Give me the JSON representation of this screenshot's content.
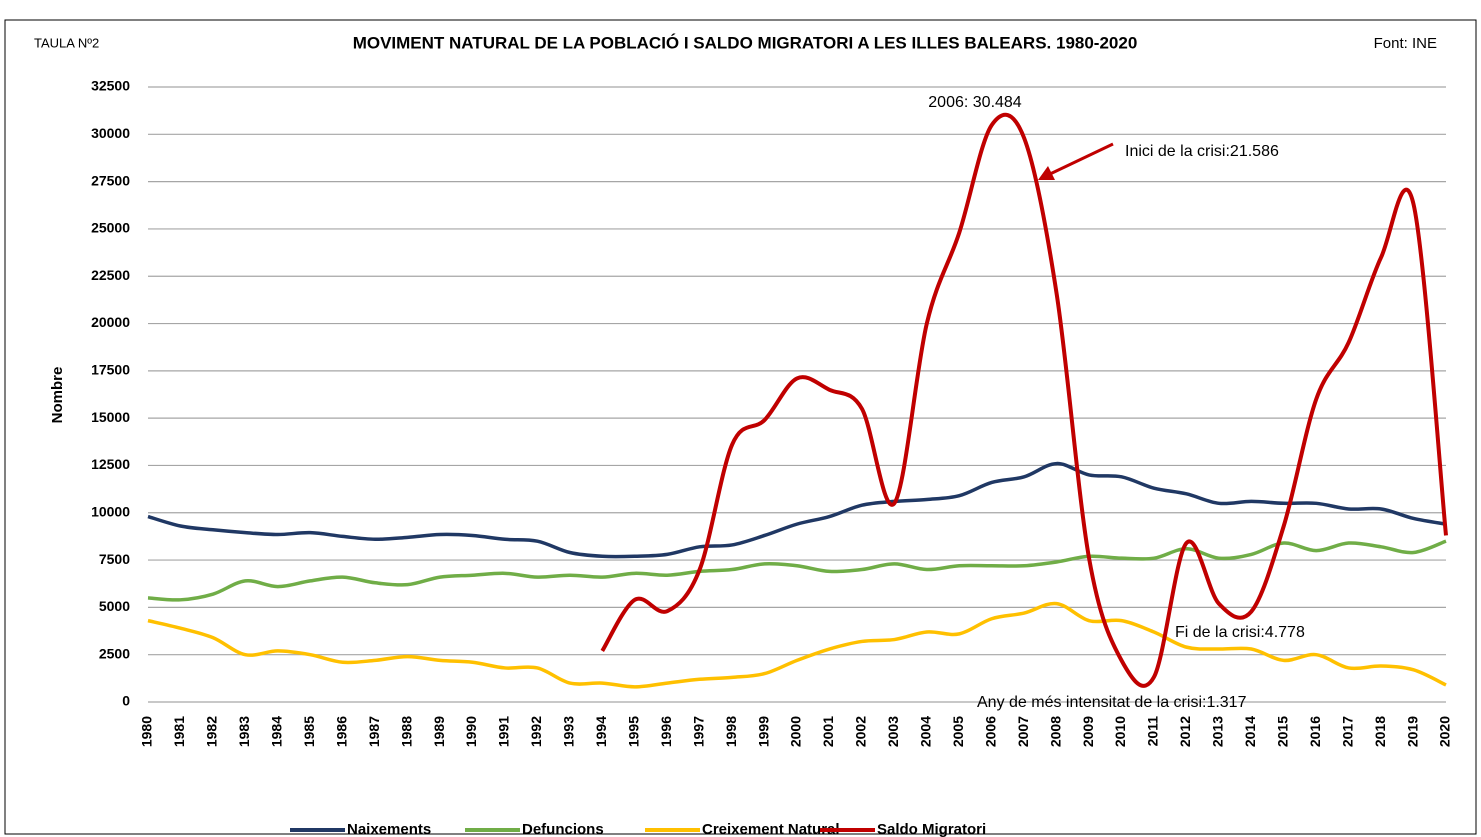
{
  "chart_data": {
    "type": "line",
    "title": "MOVIMENT NATURAL DE LA POBLACIÓ I SALDO MIGRATORI A LES ILLES BALEARS. 1980-2020",
    "table_label": "TAULA Nº2",
    "source": "Font: INE",
    "y_label": "Nombre",
    "categories": [
      "1980",
      "1981",
      "1982",
      "1983",
      "1984",
      "1985",
      "1986",
      "1987",
      "1988",
      "1989",
      "1990",
      "1991",
      "1992",
      "1993",
      "1994",
      "1995",
      "1996",
      "1997",
      "1998",
      "1999",
      "2000",
      "2001",
      "2002",
      "2003",
      "2004",
      "2005",
      "2006",
      "2007",
      "2008",
      "2009",
      "2010",
      "2011",
      "2012",
      "2013",
      "2014",
      "2015",
      "2016",
      "2017",
      "2018",
      "2019",
      "2020"
    ],
    "series": [
      {
        "name": "Naixements",
        "color": "#203864",
        "values": [
          9800,
          9300,
          9100,
          8950,
          8850,
          8950,
          8750,
          8600,
          8700,
          8850,
          8800,
          8600,
          8500,
          7900,
          7700,
          7700,
          7800,
          8200,
          8300,
          8800,
          9400,
          9800,
          10400,
          10600,
          10700,
          10900,
          11600,
          11900,
          12600,
          12000,
          11900,
          11300,
          11000,
          10500,
          10600,
          10500,
          10500,
          10200,
          10200,
          9700,
          9400
        ]
      },
      {
        "name": "Defuncions",
        "color": "#70ad47",
        "values": [
          5500,
          5400,
          5700,
          6400,
          6100,
          6400,
          6600,
          6300,
          6200,
          6600,
          6700,
          6800,
          6600,
          6700,
          6600,
          6800,
          6700,
          6900,
          7000,
          7300,
          7200,
          6900,
          7000,
          7300,
          7000,
          7200,
          7200,
          7200,
          7400,
          7700,
          7600,
          7600,
          8100,
          7600,
          7800,
          8400,
          8000,
          8400,
          8200,
          7900,
          8500
        ]
      },
      {
        "name": "Creixement Natural",
        "color": "#ffc000",
        "values": [
          4300,
          3900,
          3400,
          2500,
          2700,
          2500,
          2100,
          2200,
          2400,
          2200,
          2100,
          1800,
          1800,
          1000,
          1000,
          800,
          1000,
          1200,
          1300,
          1500,
          2200,
          2800,
          3200,
          3300,
          3700,
          3600,
          4400,
          4700,
          5200,
          4300,
          4300,
          3700,
          2900,
          2800,
          2800,
          2200,
          2500,
          1800,
          1900,
          1700,
          900
        ]
      },
      {
        "name": "Saldo Migratori",
        "color": "#c00000",
        "values": [
          null,
          null,
          null,
          null,
          null,
          null,
          null,
          null,
          null,
          null,
          null,
          null,
          null,
          null,
          2700,
          5400,
          4800,
          7000,
          13600,
          14900,
          17100,
          16500,
          15500,
          10500,
          20000,
          24800,
          30484,
          29800,
          21586,
          7600,
          2200,
          1317,
          8400,
          5200,
          4778,
          9300,
          16000,
          19000,
          23500,
          26300,
          8800
        ]
      }
    ],
    "annotations": [
      "2006: 30.484",
      "Inici de la crisi:21.586",
      "Fi de la crisi:4.778",
      "Any de més intensitat de la crisi:1.317"
    ],
    "ylim": [
      0,
      32500
    ],
    "yticks": [
      0,
      2500,
      5000,
      7500,
      10000,
      12500,
      15000,
      17500,
      20000,
      22500,
      25000,
      27500,
      30000,
      32500
    ],
    "grid": true,
    "legend": "bottom"
  }
}
